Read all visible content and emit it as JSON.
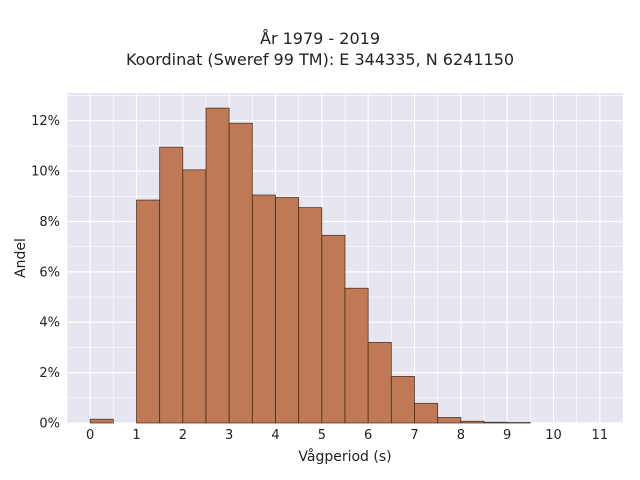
{
  "chart_data": {
    "type": "bar",
    "title_lines": [
      "År 1979 - 2019",
      "Koordinat (Sweref 99 TM): E 344335, N 6241150"
    ],
    "xlabel": "Vågperiod (s)",
    "ylabel": "Andel",
    "xlim": [
      -0.5,
      11.5
    ],
    "ylim": [
      0,
      13.1
    ],
    "x_ticks": [
      0,
      1,
      2,
      3,
      4,
      5,
      6,
      7,
      8,
      9,
      10,
      11
    ],
    "x_tick_labels": [
      "0",
      "1",
      "2",
      "3",
      "4",
      "5",
      "6",
      "7",
      "8",
      "9",
      "10",
      "11"
    ],
    "y_ticks": [
      0,
      2,
      4,
      6,
      8,
      10,
      12
    ],
    "y_tick_labels": [
      "0%",
      "2%",
      "4%",
      "6%",
      "8%",
      "10%",
      "12%"
    ],
    "bin_width": 0.5,
    "bins": [
      {
        "start": 0.0,
        "value": 0.15
      },
      {
        "start": 1.0,
        "value": 8.85
      },
      {
        "start": 1.5,
        "value": 10.95
      },
      {
        "start": 2.0,
        "value": 10.05
      },
      {
        "start": 2.5,
        "value": 12.5
      },
      {
        "start": 3.0,
        "value": 11.9
      },
      {
        "start": 3.5,
        "value": 9.05
      },
      {
        "start": 4.0,
        "value": 8.95
      },
      {
        "start": 4.5,
        "value": 8.55
      },
      {
        "start": 5.0,
        "value": 7.45
      },
      {
        "start": 5.5,
        "value": 5.35
      },
      {
        "start": 6.0,
        "value": 3.2
      },
      {
        "start": 6.5,
        "value": 1.85
      },
      {
        "start": 7.0,
        "value": 0.78
      },
      {
        "start": 7.5,
        "value": 0.22
      },
      {
        "start": 8.0,
        "value": 0.07
      },
      {
        "start": 8.5,
        "value": 0.03
      },
      {
        "start": 9.0,
        "value": 0.02
      }
    ],
    "grid": true,
    "colors": {
      "bar_fill": "#bf7a55",
      "bar_edge": "#3a2418",
      "plot_bg": "#e5e6f0",
      "grid": "#ffffff"
    }
  }
}
